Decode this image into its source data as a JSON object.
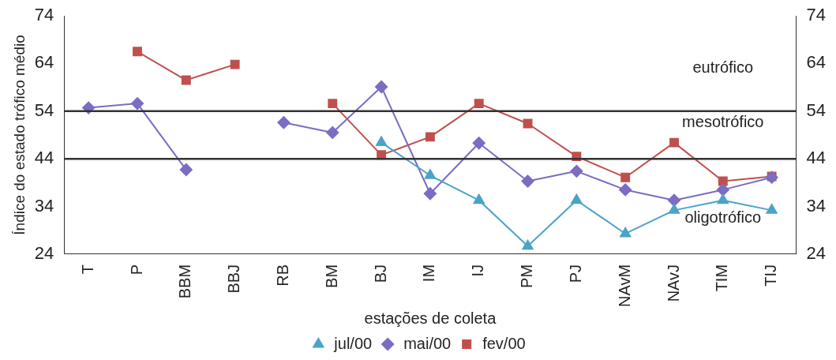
{
  "chart_data": {
    "type": "line",
    "xlabel": "estações de coleta",
    "ylabel": "Índice do estado trófico médio",
    "categories": [
      "T",
      "P",
      "BBM",
      "BBJ",
      "RB",
      "BM",
      "BJ",
      "IM",
      "IJ",
      "PM",
      "PJ",
      "NAvM",
      "NAvJ",
      "TIM",
      "TIJ"
    ],
    "series": [
      {
        "name": "fev/00",
        "color": "#c0504d",
        "marker": "square",
        "values": [
          null,
          66.5,
          60.5,
          63.8,
          null,
          55.6,
          44.8,
          48.6,
          55.6,
          51.4,
          44.5,
          40.1,
          47.4,
          39.3,
          40.3
        ]
      },
      {
        "name": "mai/00",
        "color": "#7b6cc4",
        "marker": "diamond",
        "values": [
          54.7,
          55.6,
          41.7,
          null,
          51.6,
          49.5,
          59.1,
          36.7,
          47.3,
          39.3,
          41.4,
          37.5,
          35.3,
          37.5,
          40.1
        ]
      },
      {
        "name": "jul/00",
        "color": "#4ba3c8",
        "marker": "triangle",
        "values": [
          null,
          null,
          null,
          null,
          null,
          null,
          47.4,
          40.5,
          35.3,
          25.7,
          35.3,
          28.3,
          33.2,
          35.3,
          33.2
        ]
      }
    ],
    "ylim": [
      24,
      74
    ],
    "yticks": [
      24,
      34,
      44,
      54,
      64,
      74
    ],
    "y2lim": [
      24,
      74
    ],
    "y2ticks": [
      24,
      34,
      44,
      54,
      64,
      74
    ],
    "ref_lines": [
      {
        "axis": "y",
        "value": 54,
        "color": "#333333"
      },
      {
        "axis": "y",
        "value": 44,
        "color": "#333333"
      }
    ],
    "annotations": [
      "eutrófico",
      "mesotrófico",
      "oligotrófico"
    ],
    "grid": false,
    "legend": "bottom"
  }
}
